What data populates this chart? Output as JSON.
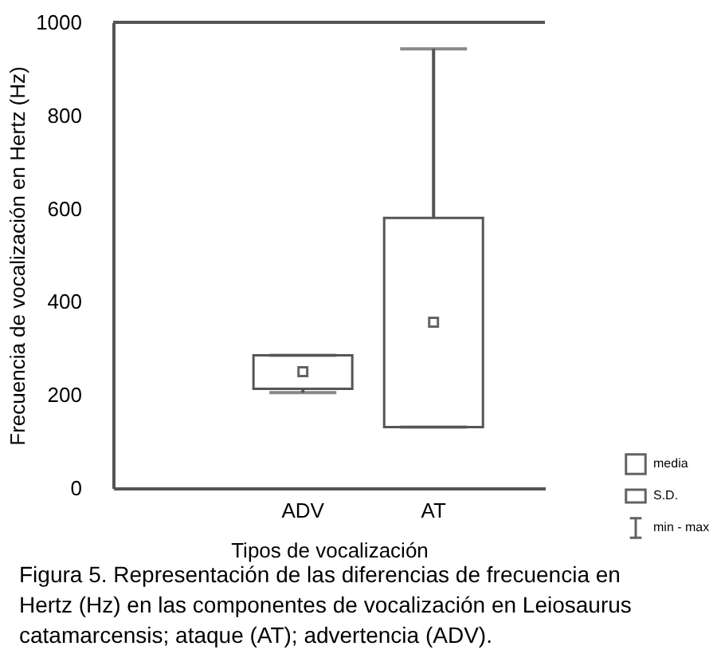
{
  "chart_data": {
    "type": "box",
    "xlabel": "Tipos de vocalización",
    "ylabel": "Frecuencia de vocalización en Hertz (Hz)",
    "categories": [
      "ADV",
      "AT"
    ],
    "boxes": [
      {
        "low": 205,
        "q1": 213,
        "q3": 285,
        "high": 285,
        "mean": 250
      },
      {
        "low": 131,
        "q1": 131,
        "q3": 580,
        "high": 943,
        "mean": 356
      }
    ],
    "ylim": [
      0,
      1000
    ],
    "yticks": [
      0,
      200,
      400,
      600,
      800,
      1000
    ],
    "grid": false,
    "annotations": [
      "media",
      "S.D.",
      "min - max",
      "Figura 5. Representación de las diferencias de  frecuencia en\nHertz (Hz) en las componentes de vocalización en Leiosaurus\ncatamarcensis; ataque (AT); advertencia (ADV)."
    ]
  }
}
